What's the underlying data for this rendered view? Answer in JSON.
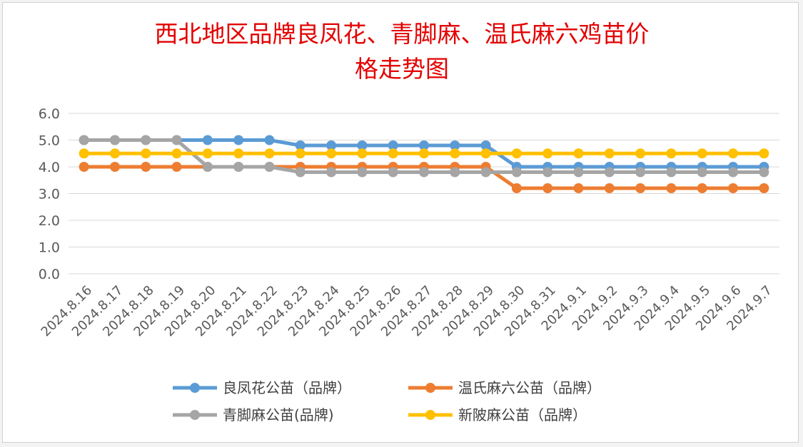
{
  "chart_data": {
    "type": "line",
    "title": "西北地区品牌良凤花、青脚麻、温氏麻六鸡苗价格走势图",
    "title_lines": [
      "西北地区品牌良凤花、青脚麻、温氏麻六鸡苗价",
      "格走势图"
    ],
    "xlabel": "",
    "ylabel": "",
    "ylim": [
      0,
      6
    ],
    "yticks": [
      "0.0",
      "1.0",
      "2.0",
      "3.0",
      "4.0",
      "5.0",
      "6.0"
    ],
    "grid": true,
    "legend_position": "bottom",
    "categories": [
      "2024.8.16",
      "2024.8.17",
      "2024.8.18",
      "2024.8.19",
      "2024.8.20",
      "2024.8.21",
      "2024.8.22",
      "2024.8.23",
      "2024.8.24",
      "2024.8.25",
      "2024.8.26",
      "2024.8.27",
      "2024.8.28",
      "2024.8.29",
      "2024.8.30",
      "2024.8.31",
      "2024.9.1",
      "2024.9.2",
      "2024.9.3",
      "2024.9.4",
      "2024.9.5",
      "2024.9.6",
      "2024.9.7"
    ],
    "series": [
      {
        "name": "良凤花公苗（品牌）",
        "color": "#5b9bd5",
        "values": [
          5.0,
          5.0,
          5.0,
          5.0,
          5.0,
          5.0,
          5.0,
          4.8,
          4.8,
          4.8,
          4.8,
          4.8,
          4.8,
          4.8,
          4.0,
          4.0,
          4.0,
          4.0,
          4.0,
          4.0,
          4.0,
          4.0,
          4.0
        ]
      },
      {
        "name": "温氏麻六公苗（品牌）",
        "color": "#ed7d31",
        "values": [
          4.0,
          4.0,
          4.0,
          4.0,
          4.0,
          4.0,
          4.0,
          4.0,
          4.0,
          4.0,
          4.0,
          4.0,
          4.0,
          4.0,
          3.2,
          3.2,
          3.2,
          3.2,
          3.2,
          3.2,
          3.2,
          3.2,
          3.2
        ]
      },
      {
        "name": "青脚麻公苗(品牌)",
        "color": "#a5a5a5",
        "values": [
          5.0,
          5.0,
          5.0,
          5.0,
          4.0,
          4.0,
          4.0,
          3.8,
          3.8,
          3.8,
          3.8,
          3.8,
          3.8,
          3.8,
          3.8,
          3.8,
          3.8,
          3.8,
          3.8,
          3.8,
          3.8,
          3.8,
          3.8
        ]
      },
      {
        "name": "新陂麻公苗（品牌）",
        "color": "#ffc000",
        "values": [
          4.5,
          4.5,
          4.5,
          4.5,
          4.5,
          4.5,
          4.5,
          4.5,
          4.5,
          4.5,
          4.5,
          4.5,
          4.5,
          4.5,
          4.5,
          4.5,
          4.5,
          4.5,
          4.5,
          4.5,
          4.5,
          4.5,
          4.5
        ]
      }
    ]
  }
}
